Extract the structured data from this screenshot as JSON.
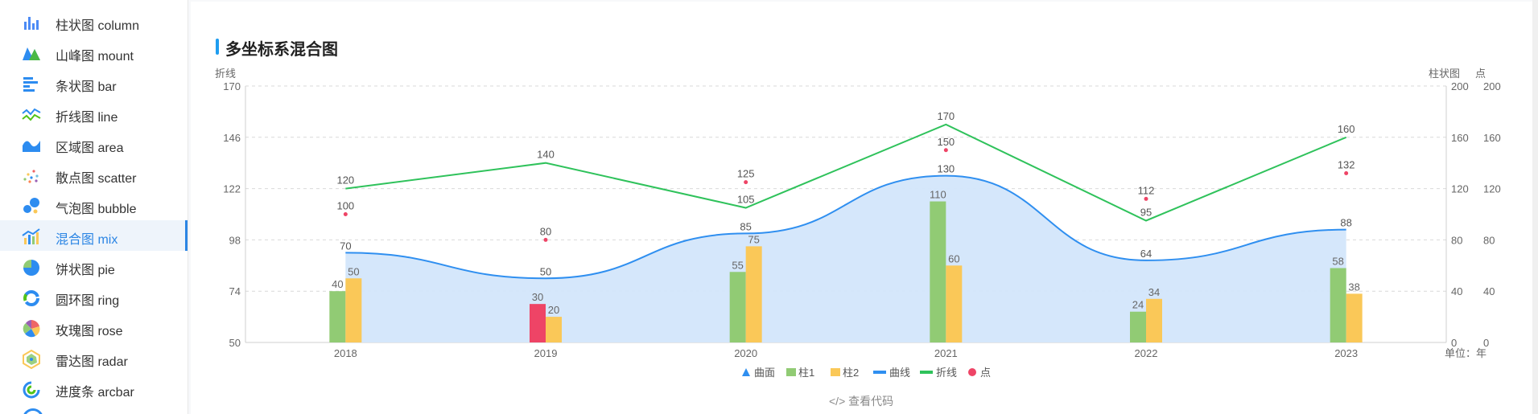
{
  "sidebar": {
    "active_index": 7,
    "items": [
      {
        "label": "柱状图  column",
        "icon": "column-chart-icon"
      },
      {
        "label": "山峰图  mount",
        "icon": "mount-chart-icon"
      },
      {
        "label": "条状图  bar",
        "icon": "bar-chart-icon"
      },
      {
        "label": "折线图  line",
        "icon": "line-chart-icon"
      },
      {
        "label": "区域图  area",
        "icon": "area-chart-icon"
      },
      {
        "label": "散点图  scatter",
        "icon": "scatter-chart-icon"
      },
      {
        "label": "气泡图  bubble",
        "icon": "bubble-chart-icon"
      },
      {
        "label": "混合图  mix",
        "icon": "mix-chart-icon"
      },
      {
        "label": "饼状图  pie",
        "icon": "pie-chart-icon"
      },
      {
        "label": "圆环图  ring",
        "icon": "ring-chart-icon"
      },
      {
        "label": "玫瑰图  rose",
        "icon": "rose-chart-icon"
      },
      {
        "label": "雷达图  radar",
        "icon": "radar-chart-icon"
      },
      {
        "label": "进度条  arcbar",
        "icon": "arcbar-chart-icon"
      }
    ]
  },
  "panel": {
    "title": "多坐标系混合图",
    "code_link": "</> 查看代码"
  },
  "colors": {
    "curve": "#2f8ff0",
    "curve_fill": "#d3e6fb",
    "col1": "#91cb74",
    "col2": "#fac858",
    "line": "#2fc25b",
    "point": "#ee4466",
    "accent": "#2b85e4"
  },
  "chart_data": {
    "type": "mix",
    "categories": [
      "2018",
      "2019",
      "2020",
      "2021",
      "2022",
      "2023"
    ],
    "x_unit_label": "单位：年",
    "left_axis": {
      "label": "折线",
      "min": 50,
      "max": 170,
      "ticks": [
        50,
        74,
        98,
        122,
        146,
        170
      ]
    },
    "right_axis_1": {
      "label": "柱状图",
      "min": 0,
      "max": 200,
      "ticks": [
        0,
        40,
        80,
        120,
        160,
        200
      ]
    },
    "right_axis_2": {
      "label": "点",
      "min": 0,
      "max": 200,
      "ticks": [
        0,
        40,
        80,
        120,
        160,
        200
      ]
    },
    "grid": "dashed horizontal",
    "legend_position": "bottom",
    "series": [
      {
        "name": "曲面",
        "type": "area",
        "axis": "right_axis_1",
        "values": [
          70,
          50,
          85,
          130,
          64,
          88
        ],
        "highlight_index": null
      },
      {
        "name": "柱1",
        "type": "column",
        "axis": "right_axis_1",
        "values": [
          40,
          30,
          55,
          110,
          24,
          58
        ],
        "highlight_index": 1,
        "highlight_color": "#ee4466"
      },
      {
        "name": "柱2",
        "type": "column",
        "axis": "right_axis_1",
        "values": [
          50,
          20,
          75,
          60,
          34,
          38
        ]
      },
      {
        "name": "曲线",
        "type": "line",
        "axis": "right_axis_1",
        "values": [
          70,
          50,
          85,
          130,
          64,
          88
        ]
      },
      {
        "name": "折线",
        "type": "line",
        "axis": "right_axis_1",
        "values": [
          120,
          140,
          105,
          170,
          95,
          160
        ]
      },
      {
        "name": "点",
        "type": "point",
        "axis": "right_axis_2",
        "values": [
          100,
          80,
          125,
          150,
          112,
          132
        ]
      }
    ]
  }
}
